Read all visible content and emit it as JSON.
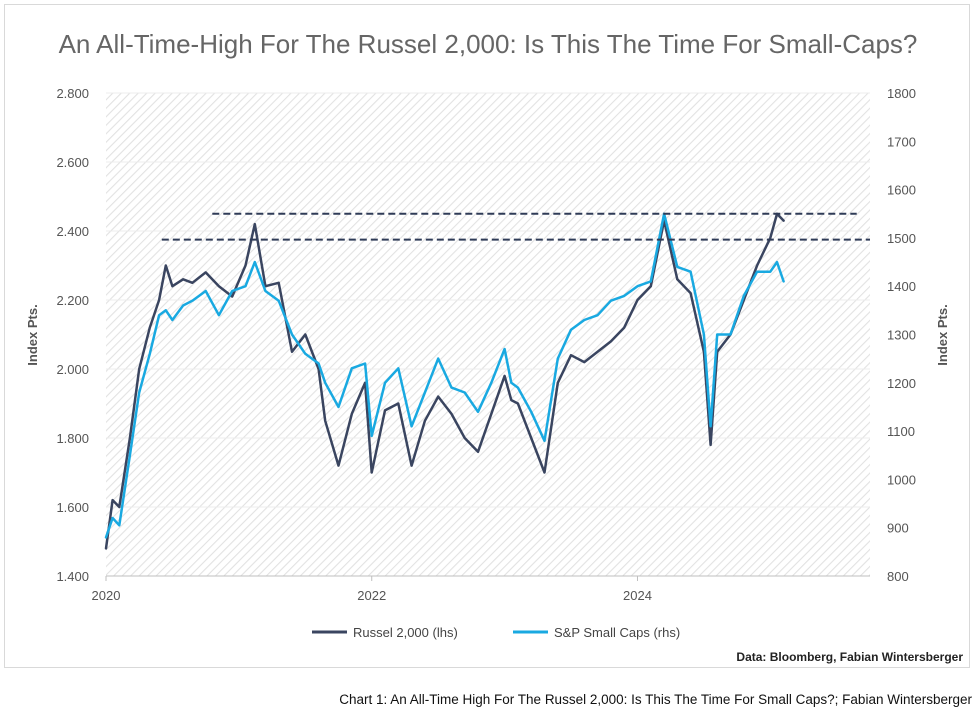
{
  "chart_data": {
    "type": "line",
    "title": "An All-Time-High For The Russel 2,000: Is This The Time For Small-Caps?",
    "ylabel_left": "Index Pts.",
    "ylabel_right": "Index Pts.",
    "x_ticks": [
      {
        "value": 2020,
        "label": "2020"
      },
      {
        "value": 2022,
        "label": "2022"
      },
      {
        "value": 2024,
        "label": "2024"
      }
    ],
    "xlim": [
      2020,
      2025.75
    ],
    "ylim_left": [
      1400,
      2800
    ],
    "ylim_right": [
      800,
      1800
    ],
    "y_ticks_left": [
      {
        "value": 1400,
        "label": "1.400"
      },
      {
        "value": 1600,
        "label": "1.600"
      },
      {
        "value": 1800,
        "label": "1.800"
      },
      {
        "value": 2000,
        "label": "2.000"
      },
      {
        "value": 2200,
        "label": "2.200"
      },
      {
        "value": 2400,
        "label": "2.400"
      },
      {
        "value": 2600,
        "label": "2.600"
      },
      {
        "value": 2800,
        "label": "2.800"
      }
    ],
    "y_ticks_right": [
      {
        "value": 800,
        "label": "800"
      },
      {
        "value": 900,
        "label": "900"
      },
      {
        "value": 1000,
        "label": "1000"
      },
      {
        "value": 1100,
        "label": "1100"
      },
      {
        "value": 1200,
        "label": "1200"
      },
      {
        "value": 1300,
        "label": "1300"
      },
      {
        "value": 1400,
        "label": "1400"
      },
      {
        "value": 1500,
        "label": "1500"
      },
      {
        "value": 1600,
        "label": "1600"
      },
      {
        "value": 1700,
        "label": "1700"
      },
      {
        "value": 1800,
        "label": "1800"
      }
    ],
    "series": [
      {
        "name": "Russel 2,000 (lhs)",
        "axis": "left",
        "color": "#3a4560",
        "x": [
          2020.0,
          2020.05,
          2020.1,
          2020.18,
          2020.25,
          2020.33,
          2020.4,
          2020.45,
          2020.5,
          2020.58,
          2020.65,
          2020.75,
          2020.85,
          2020.95,
          2021.05,
          2021.12,
          2021.2,
          2021.3,
          2021.4,
          2021.5,
          2021.6,
          2021.65,
          2021.75,
          2021.85,
          2021.95,
          2022.0,
          2022.1,
          2022.2,
          2022.3,
          2022.4,
          2022.5,
          2022.6,
          2022.7,
          2022.8,
          2022.9,
          2023.0,
          2023.05,
          2023.1,
          2023.2,
          2023.3,
          2023.4,
          2023.5,
          2023.6,
          2023.7,
          2023.8,
          2023.9,
          2024.0,
          2024.1,
          2024.2,
          2024.3,
          2024.4,
          2024.5,
          2024.55,
          2024.6,
          2024.7,
          2024.8,
          2024.9,
          2025.0,
          2025.05,
          2025.1
        ],
        "values": [
          1480,
          1620,
          1600,
          1800,
          2000,
          2120,
          2200,
          2300,
          2240,
          2260,
          2250,
          2280,
          2240,
          2210,
          2300,
          2420,
          2240,
          2250,
          2050,
          2100,
          2000,
          1850,
          1720,
          1870,
          1960,
          1700,
          1880,
          1900,
          1720,
          1850,
          1920,
          1870,
          1800,
          1760,
          1870,
          1980,
          1910,
          1900,
          1800,
          1700,
          1960,
          2040,
          2020,
          2050,
          2080,
          2120,
          2200,
          2240,
          2430,
          2260,
          2220,
          2050,
          1780,
          2050,
          2100,
          2200,
          2300,
          2380,
          2450,
          2430
        ]
      },
      {
        "name": "S&P Small Caps (rhs)",
        "axis": "right",
        "color": "#19a9e1",
        "x": [
          2020.0,
          2020.05,
          2020.1,
          2020.18,
          2020.25,
          2020.33,
          2020.4,
          2020.45,
          2020.5,
          2020.58,
          2020.65,
          2020.75,
          2020.85,
          2020.95,
          2021.05,
          2021.12,
          2021.2,
          2021.3,
          2021.4,
          2021.5,
          2021.6,
          2021.65,
          2021.75,
          2021.85,
          2021.95,
          2022.0,
          2022.1,
          2022.2,
          2022.3,
          2022.4,
          2022.5,
          2022.6,
          2022.7,
          2022.8,
          2022.9,
          2023.0,
          2023.05,
          2023.1,
          2023.2,
          2023.3,
          2023.4,
          2023.5,
          2023.6,
          2023.7,
          2023.8,
          2023.9,
          2024.0,
          2024.1,
          2024.2,
          2024.3,
          2024.4,
          2024.5,
          2024.55,
          2024.6,
          2024.7,
          2024.8,
          2024.9,
          2025.0,
          2025.05,
          2025.1
        ],
        "values": [
          880,
          920,
          905,
          1050,
          1180,
          1260,
          1340,
          1350,
          1330,
          1360,
          1370,
          1390,
          1340,
          1390,
          1400,
          1450,
          1390,
          1370,
          1300,
          1260,
          1240,
          1200,
          1150,
          1230,
          1240,
          1090,
          1200,
          1230,
          1110,
          1180,
          1250,
          1190,
          1180,
          1140,
          1200,
          1270,
          1200,
          1190,
          1140,
          1080,
          1250,
          1310,
          1330,
          1340,
          1370,
          1380,
          1400,
          1410,
          1550,
          1440,
          1430,
          1300,
          1110,
          1300,
          1300,
          1380,
          1430,
          1430,
          1450,
          1410
        ]
      }
    ],
    "reference_lines": [
      {
        "value": 2375,
        "x_start": 2020.42,
        "x_end": 2025.75,
        "style": "dashed",
        "color": "#2f3b57"
      },
      {
        "value": 2450,
        "x_start": 2020.8,
        "x_end": 2025.65,
        "style": "dashed",
        "color": "#2f3b57"
      }
    ],
    "source_note": "Data: Bloomberg, Fabian Wintersberger"
  },
  "caption": "Chart 1: An All-Time High For The Russel 2,000: Is This The Time For Small Caps?; Fabian Wintersberger"
}
